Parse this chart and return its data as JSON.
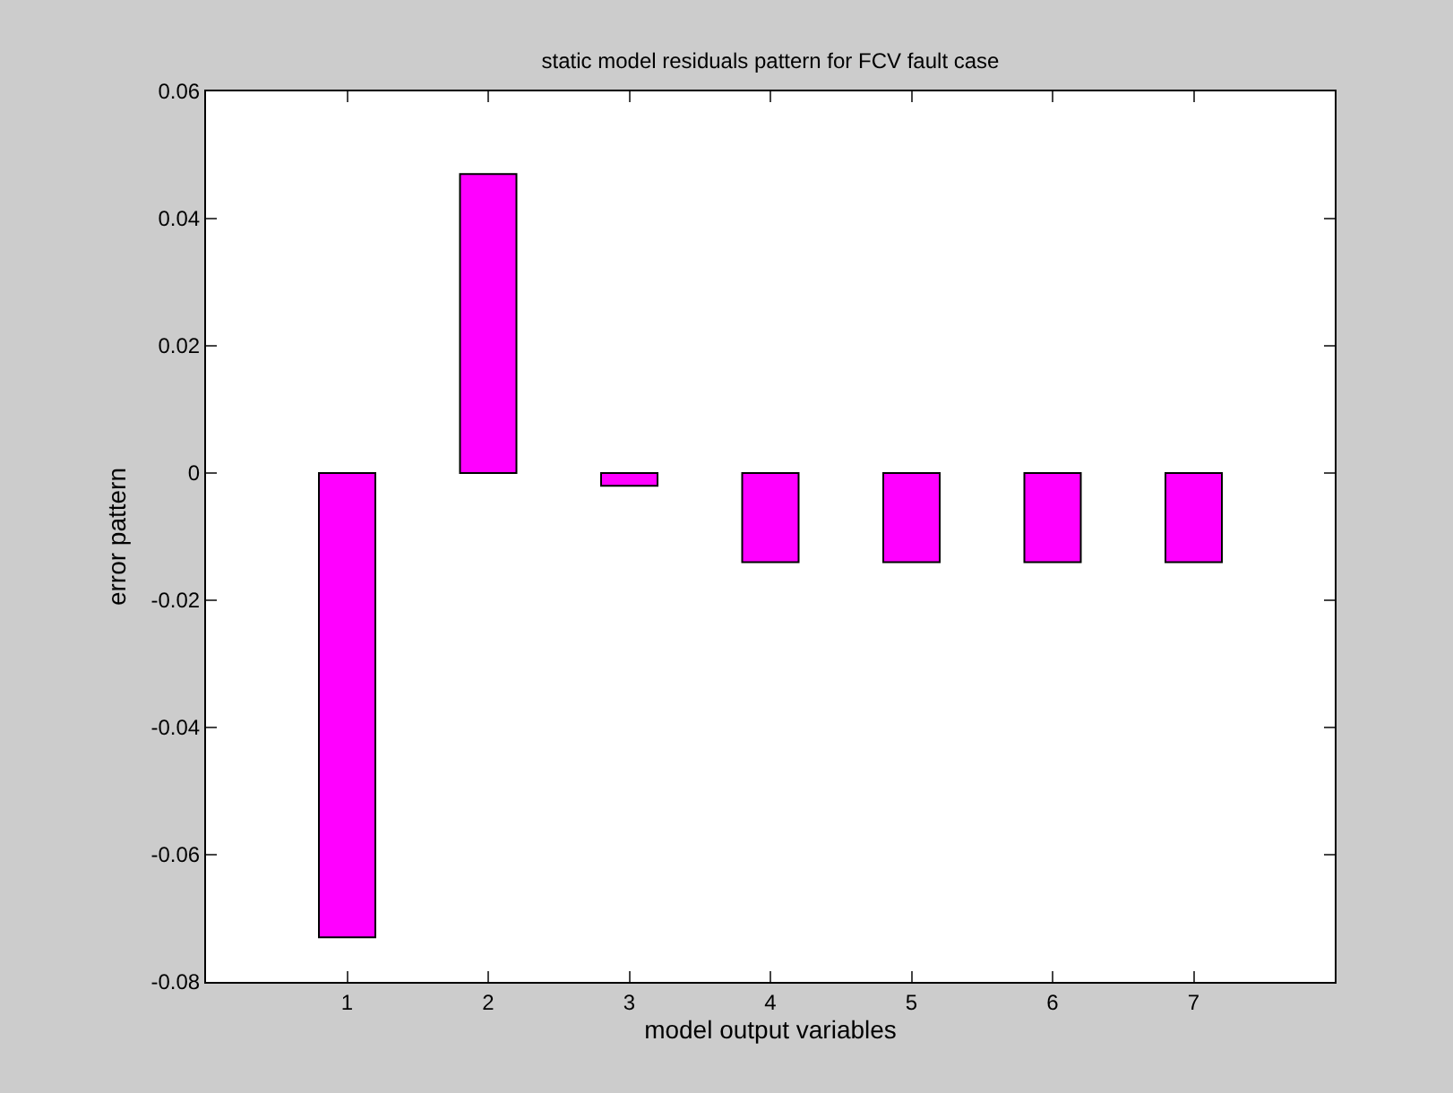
{
  "chart_data": {
    "type": "bar",
    "title": "static model residuals pattern for FCV fault case",
    "xlabel": "model output variables",
    "ylabel": "error pattern",
    "x": [
      1,
      2,
      3,
      4,
      5,
      6,
      7
    ],
    "values": [
      -0.073,
      0.047,
      -0.002,
      -0.014,
      -0.014,
      -0.014,
      -0.014
    ],
    "color": "#ff00ff",
    "xlim": [
      0,
      8
    ],
    "xticks": [
      1,
      2,
      3,
      4,
      5,
      6,
      7
    ],
    "ylim": [
      -0.08,
      0.06
    ],
    "yticks": [
      -0.08,
      -0.06,
      -0.04,
      -0.02,
      0,
      0.02,
      0.04,
      0.06
    ],
    "grid": false
  }
}
